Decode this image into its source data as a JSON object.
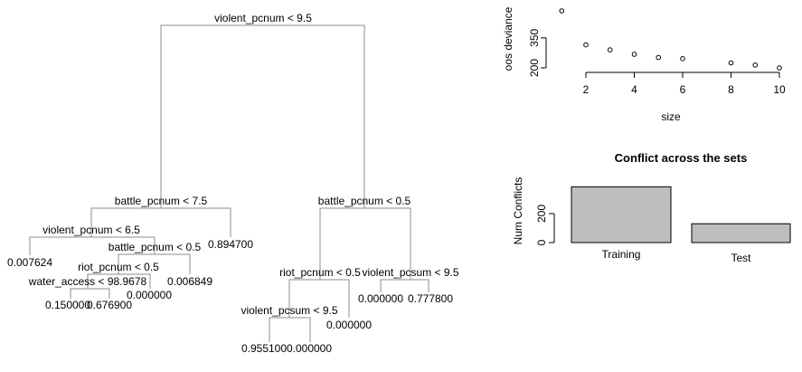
{
  "chart_data": [
    {
      "type": "tree",
      "root": {
        "split": "violent_pcnum < 9.5",
        "left": {
          "split": "battle_pcnum < 7.5",
          "left": {
            "split": "violent_pcnum < 6.5",
            "left": {
              "leaf": "0.007624"
            },
            "right": {
              "split": "battle_pcnum < 0.5",
              "left": {
                "split": "riot_pcnum < 0.5",
                "left": {
                  "split": "water_access < 98.9678",
                  "left": {
                    "leaf": "0.150000"
                  },
                  "right": {
                    "leaf": "0.676900"
                  }
                },
                "right": {
                  "leaf": "0.000000"
                }
              },
              "right": {
                "leaf": "0.006849"
              }
            }
          },
          "right": {
            "leaf": "0.894700"
          }
        },
        "right": {
          "split": "battle_pcnum < 0.5",
          "left": {
            "split": "riot_pcnum < 0.5",
            "left": {
              "split": "violent_pcsum < 9.5",
              "left": {
                "leaf": "0.955100"
              },
              "right": {
                "leaf": "0.000000"
              }
            },
            "right": {
              "leaf": "0.000000"
            }
          },
          "right": {
            "split": "violent_pcsum < 9.5",
            "left": {
              "leaf": "0.000000"
            },
            "right": {
              "leaf": "0.777800"
            }
          }
        }
      }
    },
    {
      "type": "scatter",
      "title": "",
      "xlabel": "size",
      "ylabel": "oos deviance",
      "xticks": [
        2,
        4,
        6,
        8,
        10
      ],
      "yticks": [
        200,
        350
      ],
      "xlim": [
        1,
        10
      ],
      "ylim": [
        200,
        490
      ],
      "x": [
        1,
        2,
        3,
        4,
        5,
        6,
        8,
        9,
        10
      ],
      "y": [
        485,
        315,
        290,
        268,
        252,
        246,
        225,
        214,
        200
      ]
    },
    {
      "type": "bar",
      "title": "Conflict across the sets",
      "ylabel": "Num Conflicts",
      "categories": [
        "Training",
        "Test"
      ],
      "values": [
        385,
        130
      ],
      "yticks": [
        0,
        200
      ],
      "ylim": [
        0,
        400
      ],
      "bar_color": "#bebebe"
    }
  ]
}
